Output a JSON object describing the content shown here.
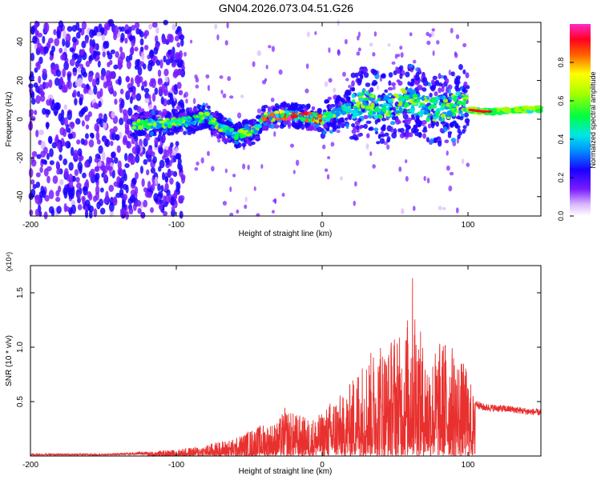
{
  "figure": {
    "title": "GN04.2026.073.04.51.G26"
  },
  "chart_data": [
    {
      "type": "heatmap",
      "title": "GN04.2026.073.04.51.G26",
      "xlabel": "Height of straight line (km)",
      "ylabel": "Frequency (Hz)",
      "xlim": [
        -200,
        150
      ],
      "ylim": [
        -50,
        50
      ],
      "xticks": [
        -200,
        -100,
        0,
        100
      ],
      "yticks": [
        -40,
        -20,
        0,
        20,
        40
      ],
      "colorbar": {
        "label": "Normalized spectral amplitude",
        "range": [
          0,
          1
        ],
        "ticks": [
          "0.0",
          "0.2",
          "0.4",
          "0.6",
          "0.8"
        ]
      },
      "ridge": {
        "x": [
          -130,
          -110,
          -90,
          -80,
          -70,
          -60,
          -50,
          -45,
          -40,
          -35,
          -30,
          -20,
          -10,
          0,
          10,
          20,
          30,
          40,
          50,
          60,
          70,
          80,
          90,
          95,
          100,
          110,
          120,
          130,
          140,
          150
        ],
        "y": [
          -3,
          -2,
          -1,
          2,
          -4,
          -8,
          -7,
          -6,
          1,
          1,
          2,
          2,
          1,
          0,
          4,
          6,
          10,
          5,
          8,
          10,
          6,
          5,
          7,
          9,
          5,
          4,
          4,
          5,
          5,
          5
        ]
      }
    },
    {
      "type": "line",
      "xlabel": "Height of straight line (km)",
      "ylabel": "SNR (10 * v/v)",
      "yscale_label": "(x10⁴)",
      "xlim": [
        -200,
        150
      ],
      "ylim": [
        0,
        1.75
      ],
      "xticks": [
        -200,
        -100,
        0,
        100
      ],
      "yticks": [
        0.5,
        1.0,
        1.5
      ],
      "ytick_labels": [
        "0.5",
        "1.0",
        "1.5"
      ],
      "series": [
        {
          "name": "SNR",
          "color": "#e8312f",
          "envelope_x": [
            -200,
            -150,
            -120,
            -100,
            -80,
            -70,
            -60,
            -50,
            -40,
            -37,
            -30,
            -26,
            -20,
            -15,
            -10,
            -5,
            0,
            5,
            10,
            15,
            20,
            25,
            30,
            35,
            40,
            45,
            50,
            55,
            60,
            62,
            65,
            70,
            75,
            80,
            85,
            90,
            95,
            100,
            105,
            110,
            120,
            130,
            140,
            150
          ],
          "envelope_max": [
            0.02,
            0.02,
            0.04,
            0.06,
            0.1,
            0.14,
            0.16,
            0.24,
            0.3,
            0.3,
            0.32,
            0.45,
            0.4,
            0.38,
            0.35,
            0.36,
            0.4,
            0.5,
            0.58,
            0.55,
            0.7,
            0.85,
            0.93,
            0.98,
            1.1,
            1.0,
            1.2,
            1.05,
            1.4,
            1.7,
            1.3,
            1.0,
            0.95,
            1.05,
            1.1,
            1.0,
            0.9,
            0.8,
            0.5,
            0.46,
            0.45,
            0.44,
            0.42,
            0.41
          ]
        }
      ]
    }
  ],
  "colors": {
    "line": "#e8312f",
    "axis": "#000000",
    "heatmap_low": "#5b00ff"
  }
}
